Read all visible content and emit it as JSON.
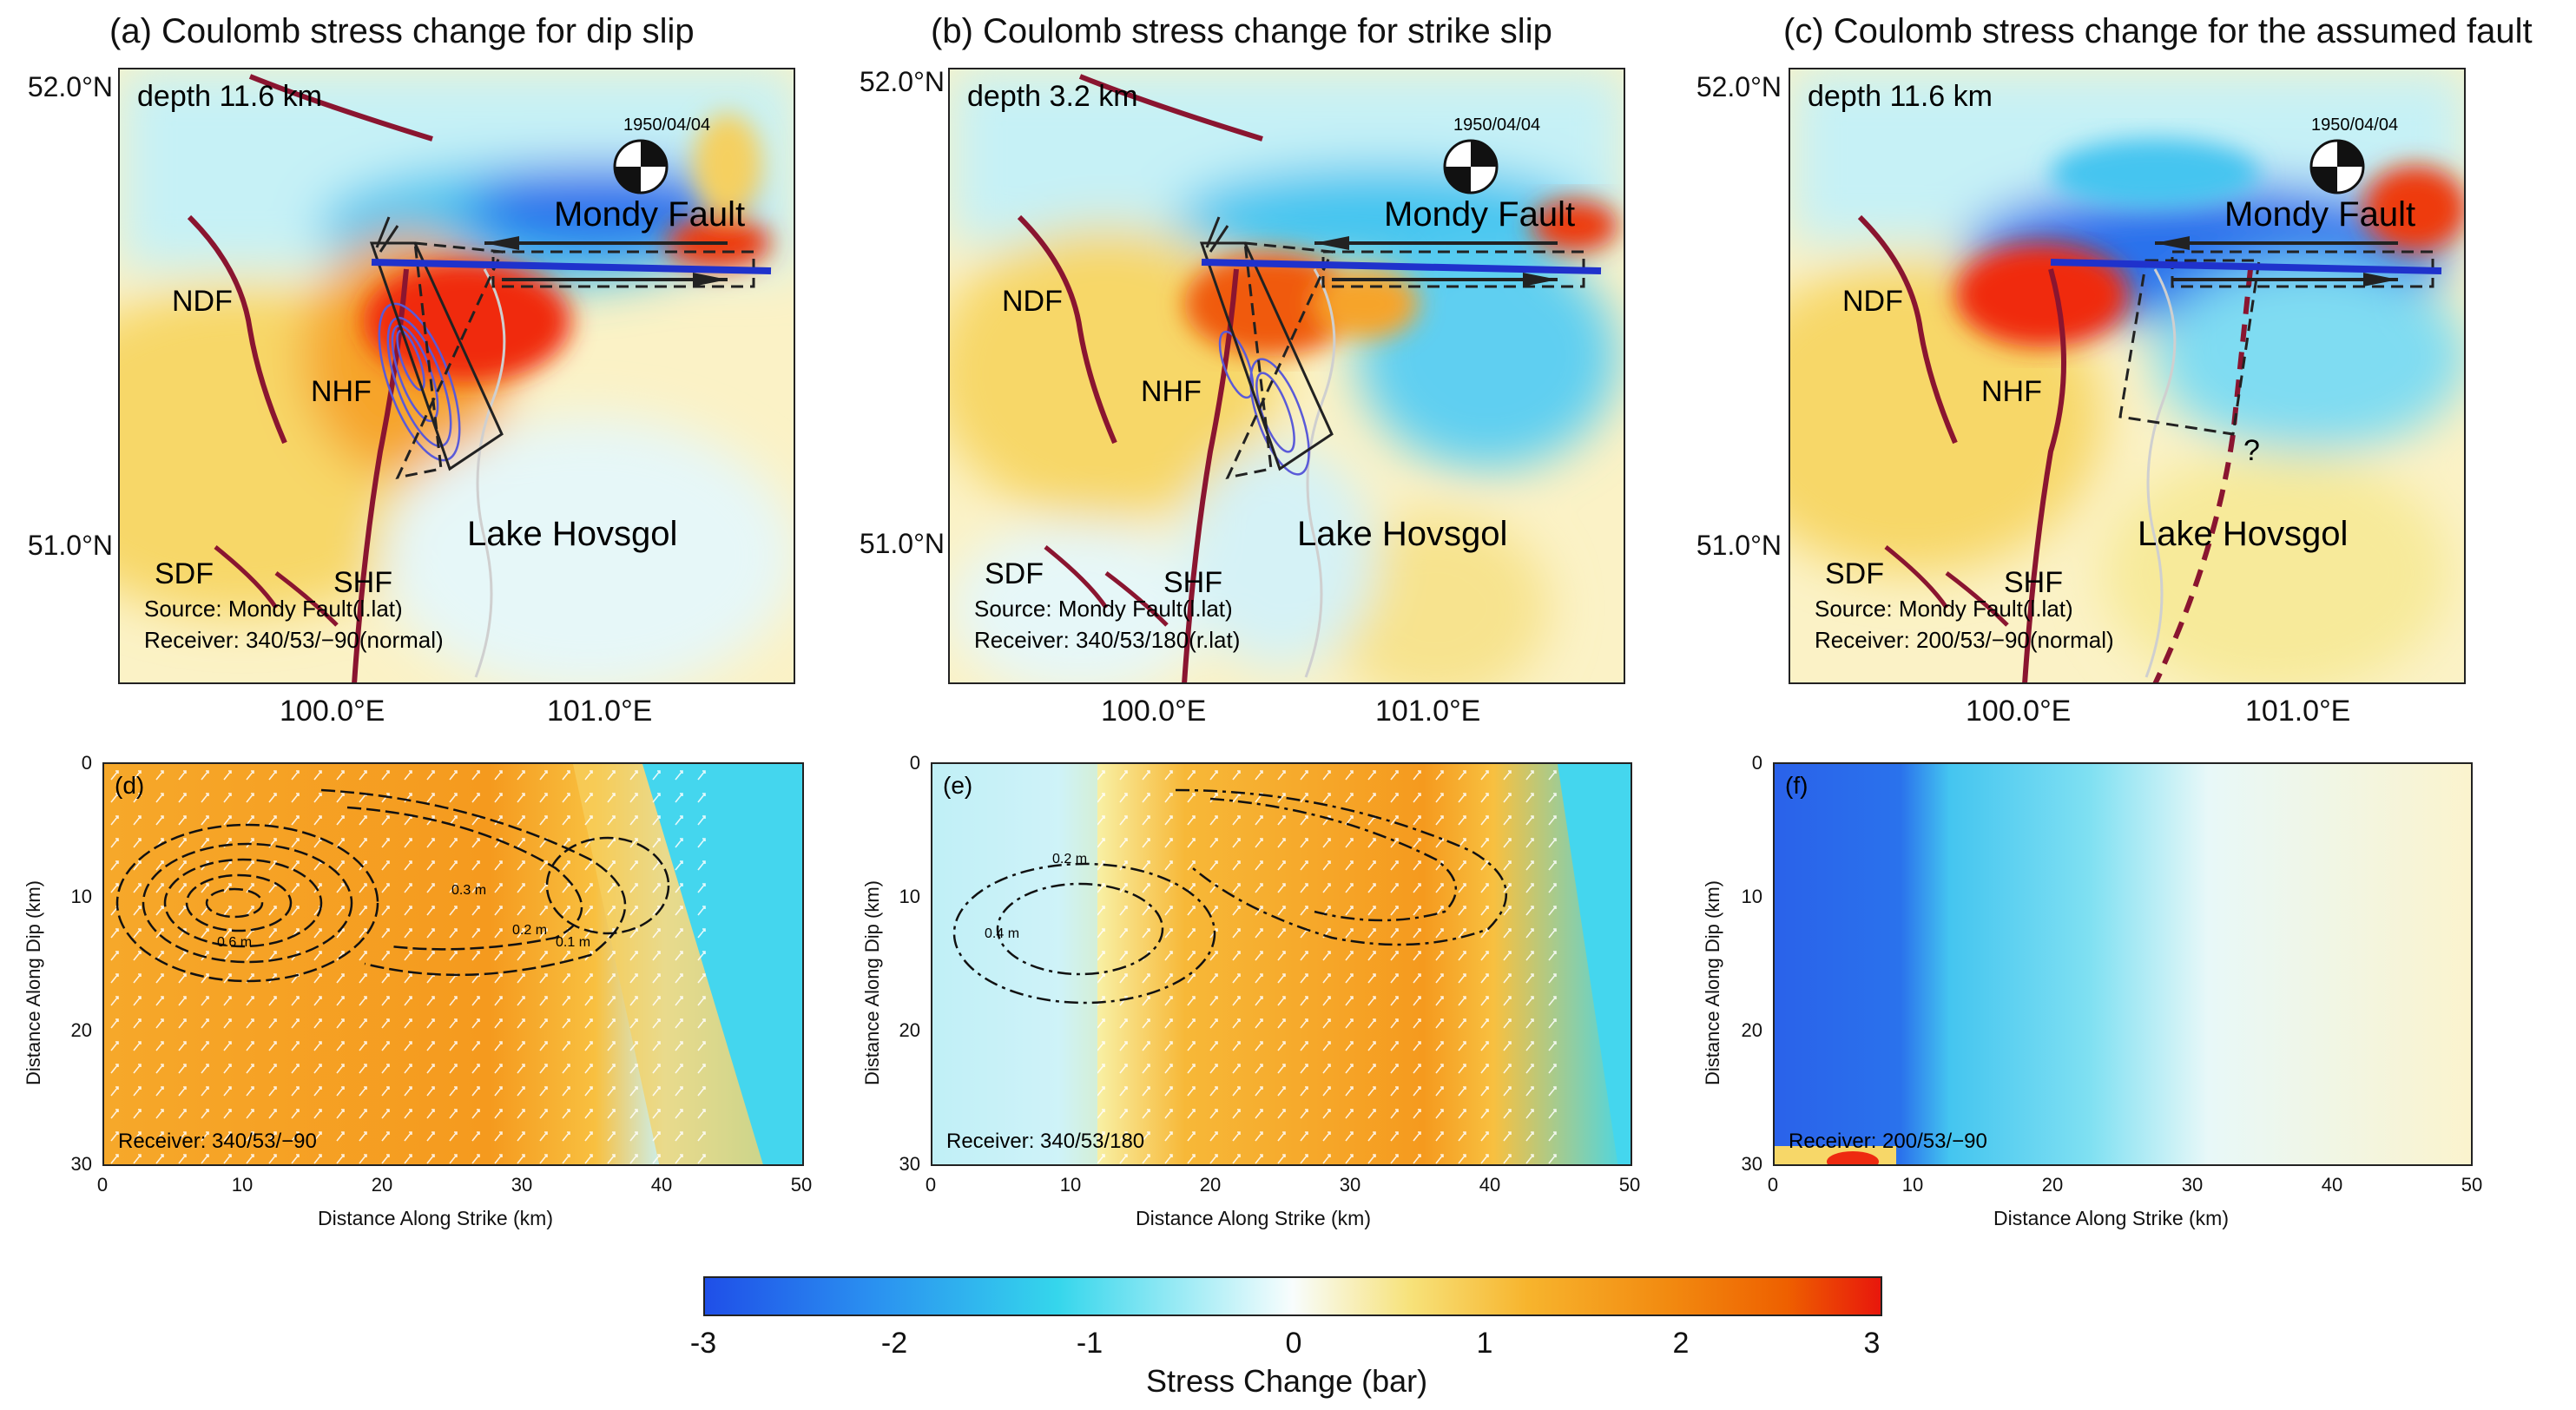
{
  "panels": [
    {
      "title": "(a) Coulomb stress change for dip slip",
      "depth": "depth 11.6 km",
      "source": "Source: Mondy Fault(l.lat)",
      "receiver": "Receiver: 340/53/−90(normal)"
    },
    {
      "title": "(b) Coulomb stress change for strike slip",
      "depth": "depth 3.2 km",
      "source": "Source: Mondy Fault(l.lat)",
      "receiver": "Receiver: 340/53/180(r.lat)"
    },
    {
      "title": "(c) Coulomb stress change for the assumed fault",
      "depth": "depth 11.6 km",
      "source": "Source: Mondy Fault(l.lat)",
      "receiver": "Receiver: 200/53/−90(normal)"
    }
  ],
  "map_labels": {
    "date": "1950/04/04",
    "mondy": "Mondy Fault",
    "ndf": "NDF",
    "nhf": "NHF",
    "sdf": "SDF",
    "shf": "SHF",
    "lake": "Lake Hovsgol",
    "question": "?"
  },
  "axes": {
    "lat_top": "52.0°N",
    "lat_bottom": "51.0°N",
    "lon_left": "100.0°E",
    "lon_right": "101.0°E",
    "dip_label": "Distance Along Dip (km)",
    "strike_label": "Distance Along Strike (km)",
    "dip_ticks": [
      "0",
      "10",
      "20",
      "30"
    ],
    "strike_ticks": [
      "0",
      "10",
      "20",
      "30",
      "40",
      "50"
    ]
  },
  "sections": [
    {
      "label": "(d)",
      "receiver": "Receiver: 340/53/−90",
      "contour_a": "0.1 m",
      "contour_b": "0.2 m",
      "contour_c": "0.3 m",
      "contour_d": "0.6 m"
    },
    {
      "label": "(e)",
      "receiver": "Receiver: 340/53/180",
      "contour_a": "0.2 m",
      "contour_b": "0.4 m"
    },
    {
      "label": "(f)",
      "receiver": "Receiver: 200/53/−90"
    }
  ],
  "colorbar": {
    "ticks": [
      "-3",
      "-2",
      "-1",
      "0",
      "1",
      "2",
      "3"
    ],
    "label": "Stress Change (bar)",
    "colors": {
      "neg": "#1f4fe8",
      "mid": "#f8fdfd",
      "pos": "#e8170c"
    }
  }
}
